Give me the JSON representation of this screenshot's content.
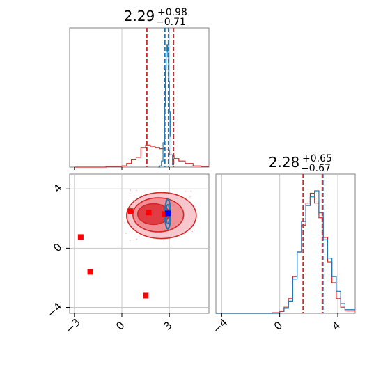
{
  "chart_data": [
    {
      "type": "histogram",
      "panel": "top-left",
      "title": {
        "median": "2.29",
        "plus": "+0.98",
        "minus": "−0.71"
      },
      "xlim": [
        -3.3,
        5.5
      ],
      "grid": true,
      "series": [
        {
          "color": "#d62728",
          "x": [
            -3,
            -2,
            -1,
            0,
            0.3,
            0.6,
            0.9,
            1.2,
            1.5,
            1.8,
            2.1,
            2.4,
            2.7,
            3.0,
            3.3,
            3.6,
            4.0,
            4.5,
            5.0,
            5.5
          ],
          "values": [
            0,
            0,
            0.005,
            0.01,
            0.03,
            0.06,
            0.08,
            0.16,
            0.18,
            0.17,
            0.16,
            0.15,
            0.14,
            0.1,
            0.07,
            0.05,
            0.03,
            0.01,
            0.005,
            0
          ]
        },
        {
          "color": "#1f77b4",
          "x": [
            2.3,
            2.4,
            2.5,
            2.6,
            2.7,
            2.75,
            2.8,
            2.85,
            2.9,
            2.95,
            3.0,
            3.05,
            3.1,
            3.2,
            3.3
          ],
          "values": [
            0,
            0.01,
            0.05,
            0.2,
            0.5,
            0.8,
            0.95,
            1.0,
            0.9,
            0.7,
            0.45,
            0.25,
            0.1,
            0.02,
            0
          ]
        }
      ],
      "vlines": [
        {
          "color": "#d62728",
          "x": 1.58
        },
        {
          "color": "#d62728",
          "x": 3.27
        },
        {
          "color": "#1f77b4",
          "x": 2.72
        },
        {
          "color": "#1f77b4",
          "x": 2.94
        }
      ]
    },
    {
      "type": "scatter",
      "panel": "bottom-left",
      "xlim": [
        -3.3,
        5.5
      ],
      "ylim": [
        -4.4,
        5.0
      ],
      "x_ticks": [
        "−3",
        "0",
        "3"
      ],
      "y_ticks": [
        "4",
        "0",
        "−4"
      ],
      "x_tick_values": [
        -3,
        0,
        3
      ],
      "y_tick_values": [
        4,
        0,
        -4
      ],
      "grid": true,
      "red_contour_levels": [
        {
          "fill": "#f6c7cc",
          "cx": 2.5,
          "cy": 2.2,
          "rx": 2.2,
          "ry": 1.55
        },
        {
          "fill": "#ee8f96",
          "cx": 2.3,
          "cy": 2.25,
          "rx": 1.6,
          "ry": 1.15
        },
        {
          "fill": "#df3d43",
          "cx": 2.0,
          "cy": 2.3,
          "rx": 1.0,
          "ry": 0.7
        }
      ],
      "blue_contour": {
        "color": "#1f77b4",
        "cx": 2.9,
        "cy": 2.3,
        "rx": 0.18,
        "ry": 1.0
      },
      "markers": [
        {
          "color": "#ff0000",
          "x": 0.55,
          "y": 2.5
        },
        {
          "color": "#ff0000",
          "x": 1.7,
          "y": 2.4
        },
        {
          "color": "#ff0000",
          "x": 2.7,
          "y": 2.3
        },
        {
          "color": "#0000ff",
          "x": 2.9,
          "y": 2.35
        },
        {
          "color": "#ff0000",
          "x": -2.0,
          "y": -1.6
        },
        {
          "color": "#ff0000",
          "x": -2.6,
          "y": 0.75
        },
        {
          "color": "#ff0000",
          "x": 1.5,
          "y": -3.2
        }
      ]
    },
    {
      "type": "histogram",
      "panel": "bottom-right",
      "title": {
        "median": "2.28",
        "plus": "+0.65",
        "minus": "−0.67"
      },
      "xlim": [
        -4.4,
        5.2
      ],
      "x_ticks": [
        "−4",
        "0",
        "4"
      ],
      "x_tick_values": [
        -4,
        0,
        4
      ],
      "grid": true,
      "series": [
        {
          "color": "#d62728",
          "x": [
            -4.4,
            -1.0,
            -0.5,
            0,
            0.3,
            0.6,
            0.9,
            1.2,
            1.5,
            1.8,
            2.1,
            2.4,
            2.7,
            3.0,
            3.3,
            3.6,
            3.9,
            4.2,
            4.5,
            5.2
          ],
          "values": [
            0,
            0,
            0.005,
            0.02,
            0.05,
            0.12,
            0.3,
            0.5,
            0.72,
            0.9,
            0.98,
            0.9,
            0.78,
            0.62,
            0.42,
            0.25,
            0.12,
            0.05,
            0.02,
            0
          ]
        },
        {
          "color": "#1f77b4",
          "x": [
            -4.4,
            -1.0,
            -0.5,
            0,
            0.3,
            0.6,
            0.9,
            1.2,
            1.5,
            1.8,
            2.1,
            2.4,
            2.7,
            3.0,
            3.3,
            3.6,
            3.9,
            4.2,
            4.5,
            5.2
          ],
          "values": [
            0,
            0,
            0.0,
            0.015,
            0.04,
            0.1,
            0.28,
            0.5,
            0.75,
            0.88,
            0.95,
            1.0,
            0.82,
            0.6,
            0.45,
            0.3,
            0.18,
            0.08,
            0.03,
            0
          ]
        }
      ],
      "vlines": [
        {
          "color": "#d62728",
          "x": 1.61
        },
        {
          "color": "#d62728",
          "x": 2.93
        },
        {
          "color": "#1f77b4",
          "x": 2.98
        }
      ]
    }
  ]
}
